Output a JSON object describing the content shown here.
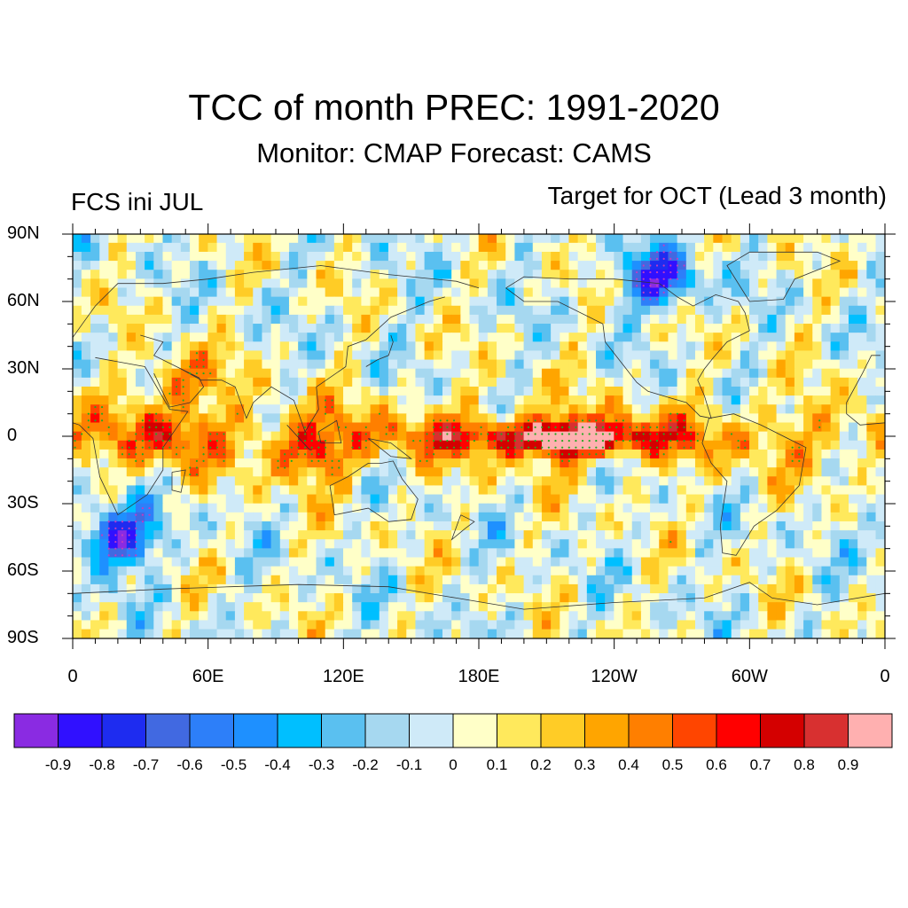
{
  "header": {
    "title": "TCC of month PREC: 1991-2020",
    "subtitle": "Monitor: CMAP   Forecast: CAMS",
    "left_label": "FCS ini JUL",
    "right_label": "Target for OCT (Lead 3 month)"
  },
  "map": {
    "projection": "cylindrical-equidistant",
    "lon_range": [
      0,
      360
    ],
    "lat_range": [
      -90,
      90
    ],
    "lat_ticks": [
      {
        "value": 90,
        "label": "90N"
      },
      {
        "value": 60,
        "label": "60N"
      },
      {
        "value": 30,
        "label": "30N"
      },
      {
        "value": 0,
        "label": "0"
      },
      {
        "value": -30,
        "label": "30S"
      },
      {
        "value": -60,
        "label": "60S"
      },
      {
        "value": -90,
        "label": "90S"
      }
    ],
    "lon_ticks": [
      {
        "value": 0,
        "label": "0"
      },
      {
        "value": 60,
        "label": "60E"
      },
      {
        "value": 120,
        "label": "120E"
      },
      {
        "value": 180,
        "label": "180E"
      },
      {
        "value": 240,
        "label": "120W"
      },
      {
        "value": 300,
        "label": "60W"
      },
      {
        "value": 360,
        "label": "0"
      }
    ],
    "features": [
      {
        "name": "tropical-pacific-max",
        "lon": 222,
        "lat": -2,
        "value": 0.9
      },
      {
        "name": "tropical-pacific-band",
        "lon": 210,
        "lat": 0,
        "value": 0.75
      },
      {
        "name": "maritime-continent",
        "lon": 105,
        "lat": -8,
        "value": 0.7
      },
      {
        "name": "arabia",
        "lon": 50,
        "lat": 25,
        "value": 0.7
      },
      {
        "name": "east-africa",
        "lon": 40,
        "lat": 0,
        "value": 0.6
      },
      {
        "name": "south-atlantic",
        "lon": 20,
        "lat": -45,
        "value": -0.6
      },
      {
        "name": "arctic-canada",
        "lon": 260,
        "lat": 70,
        "value": -0.5
      }
    ],
    "stipple_color": "#22aa22"
  },
  "colorbar": {
    "colors": [
      "#8a2be2",
      "#3010ff",
      "#1e2cf0",
      "#4169e1",
      "#2d7ff9",
      "#1e90ff",
      "#00bfff",
      "#5ac0f0",
      "#a6d8f0",
      "#cfeaf8",
      "#ffffc8",
      "#ffe95c",
      "#ffcc26",
      "#ffa500",
      "#ff7f00",
      "#ff4500",
      "#ff0000",
      "#d40000",
      "#d83030",
      "#ffb0b0"
    ],
    "labels": [
      "-0.9",
      "-0.8",
      "-0.7",
      "-0.6",
      "-0.5",
      "-0.4",
      "-0.3",
      "-0.2",
      "-0.1",
      "0",
      "0.1",
      "0.2",
      "0.3",
      "0.4",
      "0.5",
      "0.6",
      "0.7",
      "0.8",
      "0.9"
    ]
  }
}
